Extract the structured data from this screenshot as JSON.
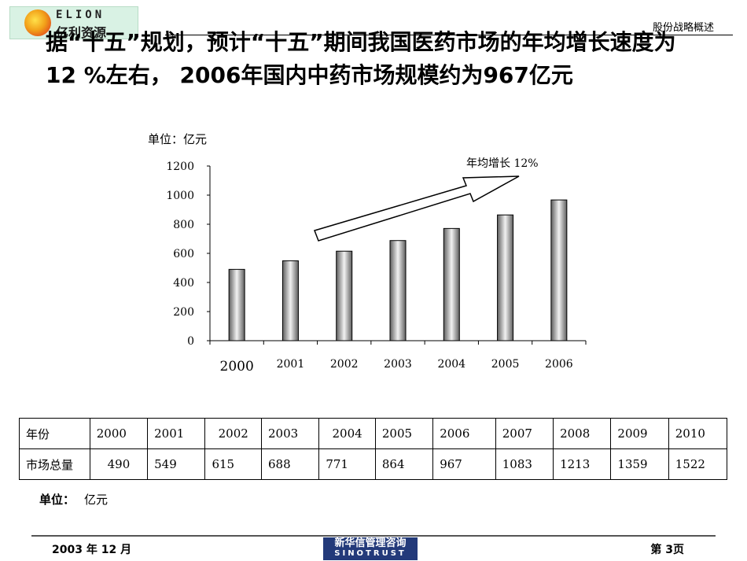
{
  "header": {
    "logo_en": "ELION",
    "logo_cn": "亿利资源",
    "section_title": "股份战略概述"
  },
  "headline": "据“十五”规划，预计“十五”期间我国医药市场的年均增长速度为12 %左右， 2006年国内中药市场规模约为967亿元",
  "chart_unit_label": "单位：亿元",
  "chart_data": {
    "type": "bar",
    "categories": [
      "2000",
      "2001",
      "2002",
      "2003",
      "2004",
      "2005",
      "2006"
    ],
    "values": [
      490,
      549,
      615,
      688,
      771,
      864,
      967
    ],
    "ylim": [
      0,
      1200
    ],
    "yticks": [
      0,
      200,
      400,
      600,
      800,
      1000,
      1200
    ],
    "annotation": "年均增长 12%",
    "grid": false,
    "bar_color": "#9a9a9a"
  },
  "table": {
    "header": [
      "年份",
      "2000",
      "2001",
      "2002",
      "2003",
      "2004",
      "2005",
      "2006",
      "2007",
      "2008",
      "2009",
      "2010"
    ],
    "row": [
      "市场总量",
      "490",
      "549",
      "615",
      "688",
      "771",
      "864",
      "967",
      "1083",
      "1213",
      "1359",
      "1522"
    ]
  },
  "unit_bottom": {
    "label": "单位：",
    "value": "亿元"
  },
  "footer": {
    "date": "2003 年 12 月",
    "logo_cn": "新华信管理咨询",
    "logo_en": "SINOTRUST",
    "page": "第 3页"
  }
}
